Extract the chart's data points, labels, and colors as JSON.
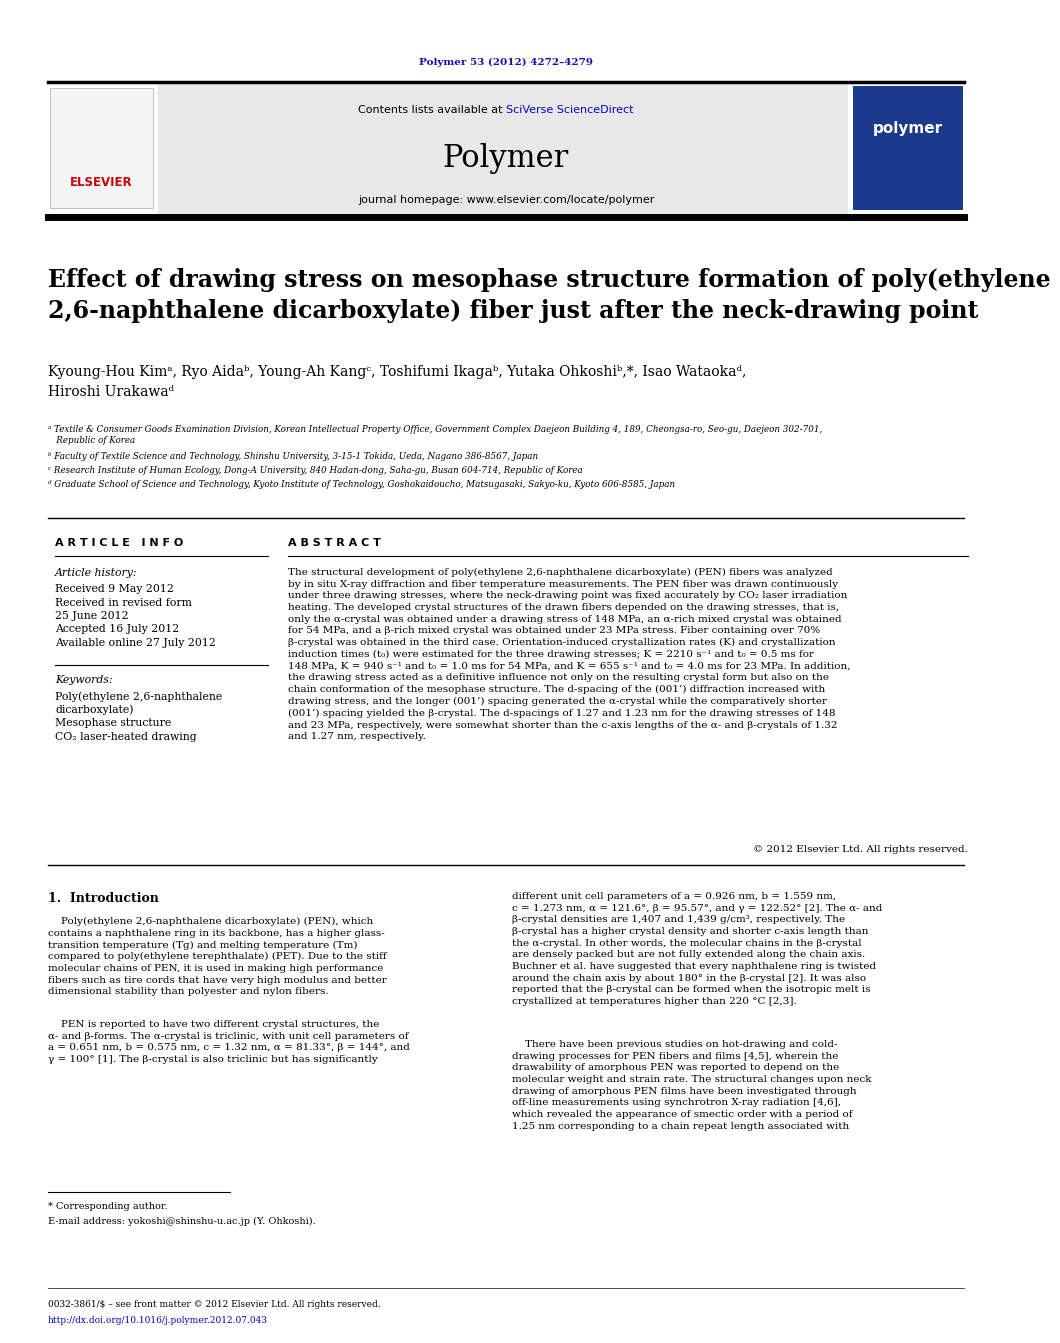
{
  "page_width": 9.92,
  "page_height": 13.23,
  "bg_color": "#ffffff",
  "journal_ref": "Polymer 53 (2012) 4272–4279",
  "journal_ref_color": "#1a0dab",
  "header_bg": "#e8e8e8",
  "contents_text": "Contents lists available at ",
  "sciverse_text": "SciVerse ScienceDirect",
  "sciverse_color": "#0000cc",
  "journal_name": "Polymer",
  "journal_homepage": "journal homepage: www.elsevier.com/locate/polymer",
  "paper_title": "Effect of drawing stress on mesophase structure formation of poly(ethylene\n2,6-naphthalene dicarboxylate) fiber just after the neck-drawing point",
  "authors": "Kyoung-Hou Kimᵃ, Ryo Aidaᵇ, Young-Ah Kangᶜ, Toshifumi Ikagaᵇ, Yutaka Ohkoshiᵇ,*, Isao Wataokaᵈ,\nHiroshi Urakawaᵈ",
  "affil_a": "ᵃ Textile & Consumer Goods Examination Division, Korean Intellectual Property Office, Government Complex Daejeon Building 4, 189, Cheongsa-ro, Seo-gu, Daejeon 302-701,\n   Republic of Korea",
  "affil_b": "ᵇ Faculty of Textile Science and Technology, Shinshu University, 3-15-1 Tokida, Ueda, Nagano 386-8567, Japan",
  "affil_c": "ᶜ Research Institute of Human Ecology, Dong-A University, 840 Hadan-dong, Saha-gu, Busan 604-714, Republic of Korea",
  "affil_d": "ᵈ Graduate School of Science and Technology, Kyoto Institute of Technology, Goshokaidoucho, Matsugasaki, Sakyo-ku, Kyoto 606-8585, Japan",
  "article_info_header": "A R T I C L E   I N F O",
  "abstract_header": "A B S T R A C T",
  "article_history_label": "Article history:",
  "received1": "Received 9 May 2012",
  "received2": "Received in revised form",
  "received2b": "25 June 2012",
  "accepted": "Accepted 16 July 2012",
  "available": "Available online 27 July 2012",
  "keywords_label": "Keywords:",
  "keyword1": "Poly(ethylene 2,6-naphthalene",
  "keyword2": "dicarboxylate)",
  "keyword3": "Mesophase structure",
  "keyword4": "CO₂ laser-heated drawing",
  "abstract_text": "The structural development of poly(ethylene 2,6-naphthalene dicarboxylate) (PEN) fibers was analyzed\nby in situ X-ray diffraction and fiber temperature measurements. The PEN fiber was drawn continuously\nunder three drawing stresses, where the neck-drawing point was fixed accurately by CO₂ laser irradiation\nheating. The developed crystal structures of the drawn fibers depended on the drawing stresses, that is,\nonly the α-crystal was obtained under a drawing stress of 148 MPa, an α-rich mixed crystal was obtained\nfor 54 MPa, and a β-rich mixed crystal was obtained under 23 MPa stress. Fiber containing over 70%\nβ-crystal was obtained in the third case. Orientation-induced crystallization rates (K) and crystallization\ninduction times (t₀) were estimated for the three drawing stresses; K = 2210 s⁻¹ and t₀ = 0.5 ms for\n148 MPa, K = 940 s⁻¹ and t₀ = 1.0 ms for 54 MPa, and K = 655 s⁻¹ and t₀ = 4.0 ms for 23 MPa. In addition,\nthe drawing stress acted as a definitive influence not only on the resulting crystal form but also on the\nchain conformation of the mesophase structure. The d-spacing of the (001’) diffraction increased with\ndrawing stress, and the longer (001’) spacing generated the α-crystal while the comparatively shorter\n(001’) spacing yielded the β-crystal. The d-spacings of 1.27 and 1.23 nm for the drawing stresses of 148\nand 23 MPa, respectively, were somewhat shorter than the c-axis lengths of the α- and β-crystals of 1.32\nand 1.27 nm, respectively.",
  "copyright": "© 2012 Elsevier Ltd. All rights reserved.",
  "intro_header": "1.  Introduction",
  "intro_text1": "    Poly(ethylene 2,6-naphthalene dicarboxylate) (PEN), which\ncontains a naphthalene ring in its backbone, has a higher glass-\ntransition temperature (Tg) and melting temperature (Tm)\ncompared to poly(ethylene terephthalate) (PET). Due to the stiff\nmolecular chains of PEN, it is used in making high performance\nfibers such as tire cords that have very high modulus and better\ndimensional stability than polyester and nylon fibers.",
  "intro_text2": "    PEN is reported to have two different crystal structures, the\nα- and β-forms. The α-crystal is triclinic, with unit cell parameters of\na = 0.651 nm, b = 0.575 nm, c = 1.32 nm, α = 81.33°, β = 144°, and\nγ = 100° [1]. The β-crystal is also triclinic but has significantly",
  "right_col_text": "different unit cell parameters of a = 0.926 nm, b = 1.559 nm,\nc = 1.273 nm, α = 121.6°, β = 95.57°, and γ = 122.52° [2]. The α- and\nβ-crystal densities are 1,407 and 1,439 g/cm³, respectively. The\nβ-crystal has a higher crystal density and shorter c-axis length than\nthe α-crystal. In other words, the molecular chains in the β-crystal\nare densely packed but are not fully extended along the chain axis.\nBuchner et al. have suggested that every naphthalene ring is twisted\naround the chain axis by about 180° in the β-crystal [2]. It was also\nreported that the β-crystal can be formed when the isotropic melt is\ncrystallized at temperatures higher than 220 °C [2,3].",
  "right_col_text2": "    There have been previous studies on hot-drawing and cold-\ndrawing processes for PEN fibers and films [4,5], wherein the\ndrawability of amorphous PEN was reported to depend on the\nmolecular weight and strain rate. The structural changes upon neck\ndrawing of amorphous PEN films have been investigated through\noff-line measurements using synchrotron X-ray radiation [4,6],\nwhich revealed the appearance of smectic order with a period of\n1.25 nm corresponding to a chain repeat length associated with",
  "footnote_star": "* Corresponding author.",
  "footnote_email": "E-mail address: yokoshi@shinshu-u.ac.jp (Y. Ohkoshi).",
  "footer_left": "0032-3861/$ – see front matter © 2012 Elsevier Ltd. All rights reserved.",
  "footer_doi": "http://dx.doi.org/10.1016/j.polymer.2012.07.043"
}
